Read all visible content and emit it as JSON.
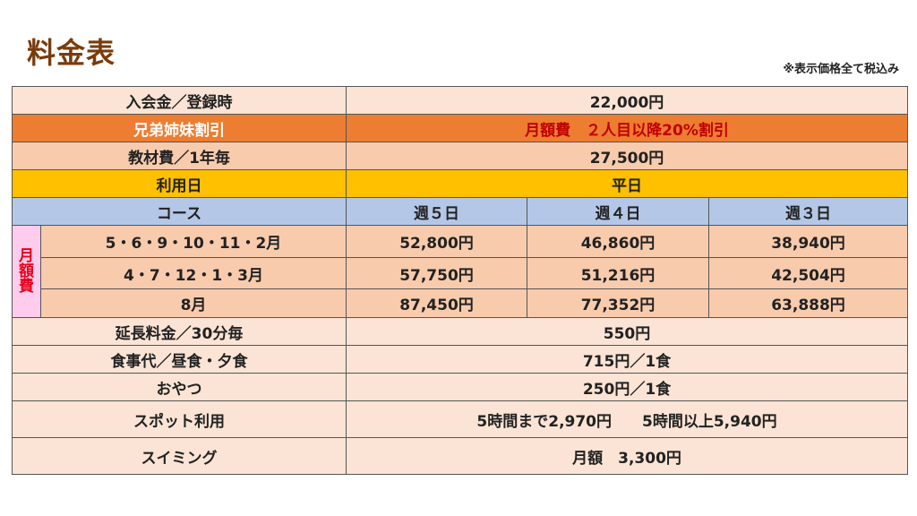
{
  "title": "料金表",
  "note": "※表示価格全て税込み",
  "rows": {
    "admission": {
      "label": "入会金／登録時",
      "value": "22,000円"
    },
    "sibling": {
      "label": "兄弟姉妹割引",
      "value": "月額費　２人目以降20%割引"
    },
    "materials": {
      "label": "教材費／1年毎",
      "value": "27,500円"
    },
    "days": {
      "label": "利用日",
      "value": "平日"
    },
    "course_header": {
      "label": "コース",
      "cols": [
        "週５日",
        "週４日",
        "週３日"
      ]
    },
    "monthly": {
      "side_label": [
        "月",
        "額",
        "費"
      ],
      "rows": [
        {
          "months": "5・6・9・10・11・2月",
          "prices": [
            "52,800円",
            "46,860円",
            "38,940円"
          ]
        },
        {
          "months": "4・7・12・1・3月",
          "prices": [
            "57,750円",
            "51,216円",
            "42,504円"
          ]
        },
        {
          "months": "8月",
          "prices": [
            "87,450円",
            "77,352円",
            "63,888円"
          ]
        }
      ]
    },
    "extension": {
      "label": "延長料金／30分毎",
      "value": "550円"
    },
    "meals": {
      "label": "食事代／昼食・夕食",
      "value": "715円／1食"
    },
    "snack": {
      "label": "おやつ",
      "value": "250円／1食"
    },
    "spot": {
      "label": "スポット利用",
      "value": "5時間まで2,970円　　5時間以上5,940円"
    },
    "swimming": {
      "label": "スイミング",
      "value": "月額　3,300円"
    }
  },
  "colors": {
    "title": "#7a3b0c",
    "peach": "#fbe4d5",
    "salmon": "#f8cbad",
    "orange": "#ed7d31",
    "yellow": "#ffc000",
    "blue": "#b4c7e7",
    "pink": "#ffccee",
    "red_text": "#c00000"
  }
}
